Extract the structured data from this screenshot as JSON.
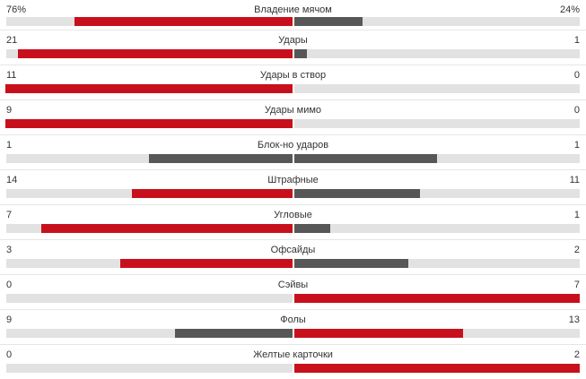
{
  "stats": [
    {
      "label": "Владение мячом",
      "home": "76%",
      "away": "24%",
      "home_value": 76,
      "away_value": 24,
      "home_fraction": 0.76,
      "away_fraction": 0.24,
      "home_color": "#c8101d",
      "away_color": "#575757"
    },
    {
      "label": "Удары",
      "home": "21",
      "away": "1",
      "home_value": 21,
      "away_value": 1,
      "home_fraction": 0.955,
      "away_fraction": 0.045,
      "home_color": "#c8101d",
      "away_color": "#575757"
    },
    {
      "label": "Удары в створ",
      "home": "11",
      "away": "0",
      "home_value": 11,
      "away_value": 0,
      "home_fraction": 1.0,
      "away_fraction": 0.0,
      "home_color": "#c8101d",
      "away_color": "#575757"
    },
    {
      "label": "Удары мимо",
      "home": "9",
      "away": "0",
      "home_value": 9,
      "away_value": 0,
      "home_fraction": 1.0,
      "away_fraction": 0.0,
      "home_color": "#c8101d",
      "away_color": "#575757"
    },
    {
      "label": "Блок-но ударов",
      "home": "1",
      "away": "1",
      "home_value": 1,
      "away_value": 1,
      "home_fraction": 0.5,
      "away_fraction": 0.5,
      "home_color": "#575757",
      "away_color": "#575757"
    },
    {
      "label": "Штрафные",
      "home": "14",
      "away": "11",
      "home_value": 14,
      "away_value": 11,
      "home_fraction": 0.56,
      "away_fraction": 0.44,
      "home_color": "#c8101d",
      "away_color": "#575757"
    },
    {
      "label": "Угловые",
      "home": "7",
      "away": "1",
      "home_value": 7,
      "away_value": 1,
      "home_fraction": 0.875,
      "away_fraction": 0.125,
      "home_color": "#c8101d",
      "away_color": "#575757"
    },
    {
      "label": "Офсайды",
      "home": "3",
      "away": "2",
      "home_value": 3,
      "away_value": 2,
      "home_fraction": 0.6,
      "away_fraction": 0.4,
      "home_color": "#c8101d",
      "away_color": "#575757"
    },
    {
      "label": "Сэйвы",
      "home": "0",
      "away": "7",
      "home_value": 0,
      "away_value": 7,
      "home_fraction": 0.0,
      "away_fraction": 1.0,
      "home_color": "#575757",
      "away_color": "#c8101d"
    },
    {
      "label": "Фолы",
      "home": "9",
      "away": "13",
      "home_value": 9,
      "away_value": 13,
      "home_fraction": 0.41,
      "away_fraction": 0.59,
      "home_color": "#575757",
      "away_color": "#c8101d"
    },
    {
      "label": "Желтые карточки",
      "home": "0",
      "away": "2",
      "home_value": 0,
      "away_value": 2,
      "home_fraction": 0.0,
      "away_fraction": 1.0,
      "home_color": "#575757",
      "away_color": "#c8101d"
    }
  ]
}
